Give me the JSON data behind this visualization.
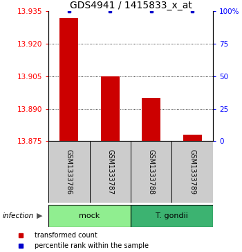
{
  "title": "GDS4941 / 1415833_x_at",
  "samples": [
    "GSM1333786",
    "GSM1333787",
    "GSM1333788",
    "GSM1333789"
  ],
  "red_values": [
    13.932,
    13.905,
    13.895,
    13.878
  ],
  "blue_values": [
    100,
    100,
    100,
    100
  ],
  "ylim_left": [
    13.875,
    13.935
  ],
  "ylim_right": [
    0,
    100
  ],
  "yticks_left": [
    13.875,
    13.89,
    13.905,
    13.92,
    13.935
  ],
  "yticks_right": [
    0,
    25,
    50,
    75,
    100
  ],
  "ytick_labels_right": [
    "0",
    "25",
    "50",
    "75",
    "100%"
  ],
  "grid_values": [
    13.89,
    13.905,
    13.92
  ],
  "bar_color": "#cc0000",
  "dot_color": "#0000cc",
  "group1_label": "mock",
  "group2_label": "T. gondii",
  "group1_color": "#90ee90",
  "group2_color": "#3cb371",
  "sample_box_color": "#cccccc",
  "infection_label": "infection",
  "arrow_char": "▶",
  "legend_red": "transformed count",
  "legend_blue": "percentile rank within the sample",
  "title_fontsize": 10,
  "tick_fontsize": 7.5,
  "sample_fontsize": 7,
  "group_fontsize": 8,
  "legend_fontsize": 7
}
